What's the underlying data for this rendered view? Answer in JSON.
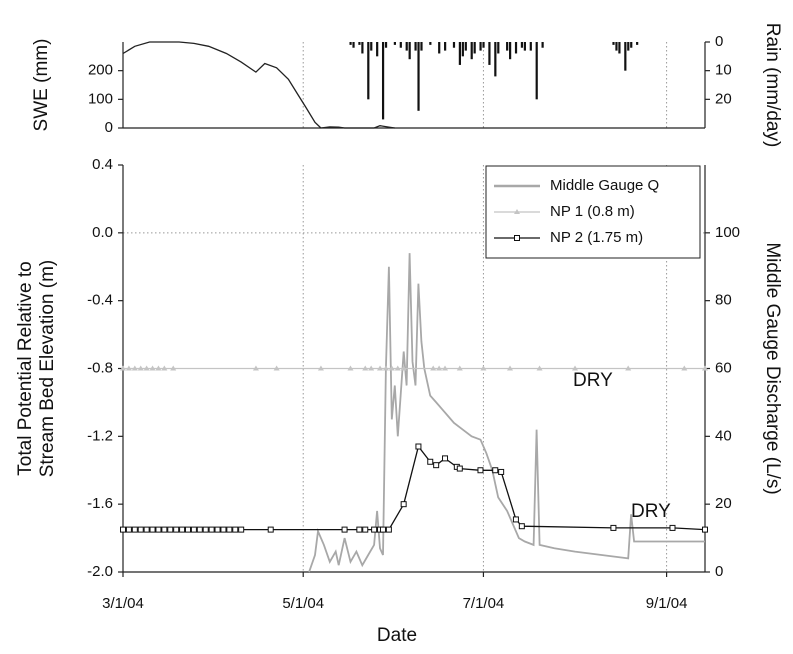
{
  "chart_data": [
    {
      "type": "combo",
      "ylabel": "SWE (mm)",
      "y2label": "Rain (mm/day)",
      "ylim": [
        0,
        300
      ],
      "yticks": [
        0,
        100,
        200
      ],
      "y2lim": [
        0,
        30
      ],
      "y2ticks": [
        0,
        10,
        20
      ],
      "y2_inverted": true,
      "grid_x": true,
      "series": [
        {
          "type": "line",
          "color": "#222222",
          "x": [
            "3/1/04",
            "3/5/04",
            "3/10/04",
            "3/20/04",
            "3/25/04",
            "3/30/04",
            "4/5/04",
            "4/10/04",
            "4/15/04",
            "4/18/04",
            "4/22/04",
            "4/26/04",
            "4/29/04",
            "5/2/04",
            "5/5/04",
            "5/7/04",
            "5/10/04",
            "5/13/04",
            "5/15/04",
            "5/25/04",
            "5/27/04",
            "5/30/04",
            "6/1/04"
          ],
          "values": [
            260,
            285,
            300,
            300,
            295,
            285,
            260,
            230,
            195,
            225,
            210,
            170,
            120,
            70,
            20,
            0,
            4,
            3,
            0,
            0,
            8,
            3,
            0
          ]
        },
        {
          "type": "bar",
          "axis": "y2",
          "color": "#111111",
          "x": [
            "5/17/04",
            "5/18/04",
            "5/20/04",
            "5/21/04",
            "5/23/04",
            "5/24/04",
            "5/26/04",
            "5/28/04",
            "5/29/04",
            "6/1/04",
            "6/3/04",
            "6/5/04",
            "6/6/04",
            "6/8/04",
            "6/9/04",
            "6/10/04",
            "6/13/04",
            "6/16/04",
            "6/18/04",
            "6/21/04",
            "6/23/04",
            "6/24/04",
            "6/25/04",
            "6/27/04",
            "6/28/04",
            "6/30/04",
            "7/1/04",
            "7/3/04",
            "7/5/04",
            "7/6/04",
            "7/9/04",
            "7/10/04",
            "7/12/04",
            "7/14/04",
            "7/15/04",
            "7/17/04",
            "7/19/04",
            "7/21/04",
            "8/14/04",
            "8/15/04",
            "8/16/04",
            "8/18/04",
            "8/19/04",
            "8/20/04",
            "8/22/04"
          ],
          "values": [
            1,
            2,
            1,
            4,
            20,
            3,
            5,
            27,
            2,
            1,
            2,
            3,
            6,
            3,
            24,
            3,
            1,
            4,
            3,
            2,
            8,
            5,
            3,
            6,
            4,
            3,
            2,
            8,
            12,
            4,
            3,
            6,
            4,
            2,
            3,
            3,
            20,
            2,
            1,
            3,
            4,
            10,
            3,
            2,
            1
          ]
        }
      ]
    },
    {
      "type": "line",
      "xlabel": "Date",
      "ylabel": [
        "Total Potential Relative to",
        "Stream Bed Elevation (m)"
      ],
      "y2label": "Middle Gauge Discharge (L/s)",
      "xlim": [
        "3/1/04",
        "9/14/04"
      ],
      "xticks": [
        "3/1/04",
        "5/1/04",
        "7/1/04",
        "9/1/04"
      ],
      "ylim": [
        -2.0,
        0.4
      ],
      "yticks": [
        {
          "value": -2.0,
          "label": "-2.0"
        },
        -1.6,
        -1.2,
        -0.8,
        -0.4,
        {
          "value": 0,
          "label": "0.0"
        },
        0.4
      ],
      "y2lim": [
        0,
        120
      ],
      "y2ticks": [
        0,
        20,
        40,
        60,
        80,
        100
      ],
      "grid_x": true,
      "zero_line": true,
      "legend": "top-right",
      "annotations": [
        "DRY",
        "DRY"
      ],
      "series": [
        {
          "name": "Middle Gauge Q",
          "color": "#a8a8a8",
          "axis": "y2",
          "marker": "none",
          "x": [
            "5/3/04",
            "5/5/04",
            "5/6/04",
            "5/8/04",
            "5/10/04",
            "5/12/04",
            "5/13/04",
            "5/15/04",
            "5/17/04",
            "5/19/04",
            "5/21/04",
            "5/23/04",
            "5/25/04",
            "5/26/04",
            "5/27/04",
            "5/28/04",
            "5/29/04",
            "5/30/04",
            "5/31/04",
            "6/1/04",
            "6/2/04",
            "6/4/04",
            "6/5/04",
            "6/6/04",
            "6/7/04",
            "6/8/04",
            "6/9/04",
            "6/10/04",
            "6/11/04",
            "6/13/04",
            "6/15/04",
            "6/17/04",
            "6/19/04",
            "6/21/04",
            "6/24/04",
            "6/27/04",
            "6/30/04",
            "7/2/04",
            "7/4/04",
            "7/6/04",
            "7/9/04",
            "7/11/04",
            "7/13/04",
            "7/15/04",
            "7/18/04",
            "7/19/04",
            "7/20/04",
            "7/25/04",
            "8/1/04",
            "8/10/04",
            "8/19/04",
            "8/20/04",
            "8/21/04",
            "9/14/04"
          ],
          "values": [
            0,
            5,
            12,
            8,
            3,
            6,
            2,
            10,
            3,
            6,
            2,
            5,
            8,
            18,
            7,
            5,
            60,
            90,
            45,
            55,
            40,
            65,
            55,
            94,
            62,
            55,
            85,
            68,
            60,
            52,
            50,
            48,
            46,
            44,
            42,
            40,
            39,
            35,
            30,
            22,
            18,
            14,
            10,
            9,
            8,
            42,
            8,
            7,
            6,
            5,
            4,
            17,
            9,
            9
          ]
        },
        {
          "name": "NP 1 (0.8 m)",
          "color": "#c4c4c4",
          "marker": "triangle",
          "x": [
            "3/1/04",
            "3/3/04",
            "3/5/04",
            "3/7/04",
            "3/9/04",
            "3/11/04",
            "3/13/04",
            "3/15/04",
            "3/18/04",
            "4/15/04",
            "4/22/04",
            "5/7/04",
            "5/17/04",
            "5/22/04",
            "5/24/04",
            "5/27/04",
            "5/29/04",
            "5/31/04",
            "6/2/04",
            "6/4/04",
            "6/14/04",
            "6/16/04",
            "6/18/04",
            "6/23/04",
            "7/1/04",
            "7/10/04",
            "7/20/04",
            "8/1/04",
            "8/19/04",
            "9/7/04",
            "9/14/04"
          ],
          "values": [
            -0.8,
            -0.8,
            -0.8,
            -0.8,
            -0.8,
            -0.8,
            -0.8,
            -0.8,
            -0.8,
            -0.8,
            -0.8,
            -0.8,
            -0.8,
            -0.8,
            -0.8,
            -0.8,
            -0.8,
            -0.8,
            -0.8,
            -0.8,
            -0.8,
            -0.8,
            -0.8,
            -0.8,
            -0.8,
            -0.8,
            -0.8,
            -0.8,
            -0.8,
            -0.8,
            -0.8
          ]
        },
        {
          "name": "NP 2 (1.75 m)",
          "color": "#111111",
          "marker": "square",
          "x": [
            "3/1/04",
            "3/3/04",
            "3/5/04",
            "3/7/04",
            "3/9/04",
            "3/11/04",
            "3/13/04",
            "3/15/04",
            "3/17/04",
            "3/19/04",
            "3/21/04",
            "3/23/04",
            "3/25/04",
            "3/27/04",
            "3/29/04",
            "3/31/04",
            "4/2/04",
            "4/4/04",
            "4/6/04",
            "4/8/04",
            "4/10/04",
            "4/20/04",
            "5/15/04",
            "5/20/04",
            "5/22/04",
            "5/25/04",
            "5/27/04",
            "5/28/04",
            "5/30/04",
            "6/4/04",
            "6/9/04",
            "6/13/04",
            "6/15/04",
            "6/18/04",
            "6/22/04",
            "6/23/04",
            "6/30/04",
            "7/5/04",
            "7/7/04",
            "7/12/04",
            "7/14/04",
            "8/14/04",
            "9/3/04",
            "9/14/04"
          ],
          "values": [
            -1.75,
            -1.75,
            -1.75,
            -1.75,
            -1.75,
            -1.75,
            -1.75,
            -1.75,
            -1.75,
            -1.75,
            -1.75,
            -1.75,
            -1.75,
            -1.75,
            -1.75,
            -1.75,
            -1.75,
            -1.75,
            -1.75,
            -1.75,
            -1.75,
            -1.75,
            -1.75,
            -1.75,
            -1.75,
            -1.75,
            -1.75,
            -1.75,
            -1.75,
            -1.6,
            -1.26,
            -1.35,
            -1.37,
            -1.33,
            -1.38,
            -1.39,
            -1.4,
            -1.4,
            -1.41,
            -1.69,
            -1.73,
            -1.74,
            -1.74,
            -1.75
          ]
        }
      ]
    }
  ]
}
